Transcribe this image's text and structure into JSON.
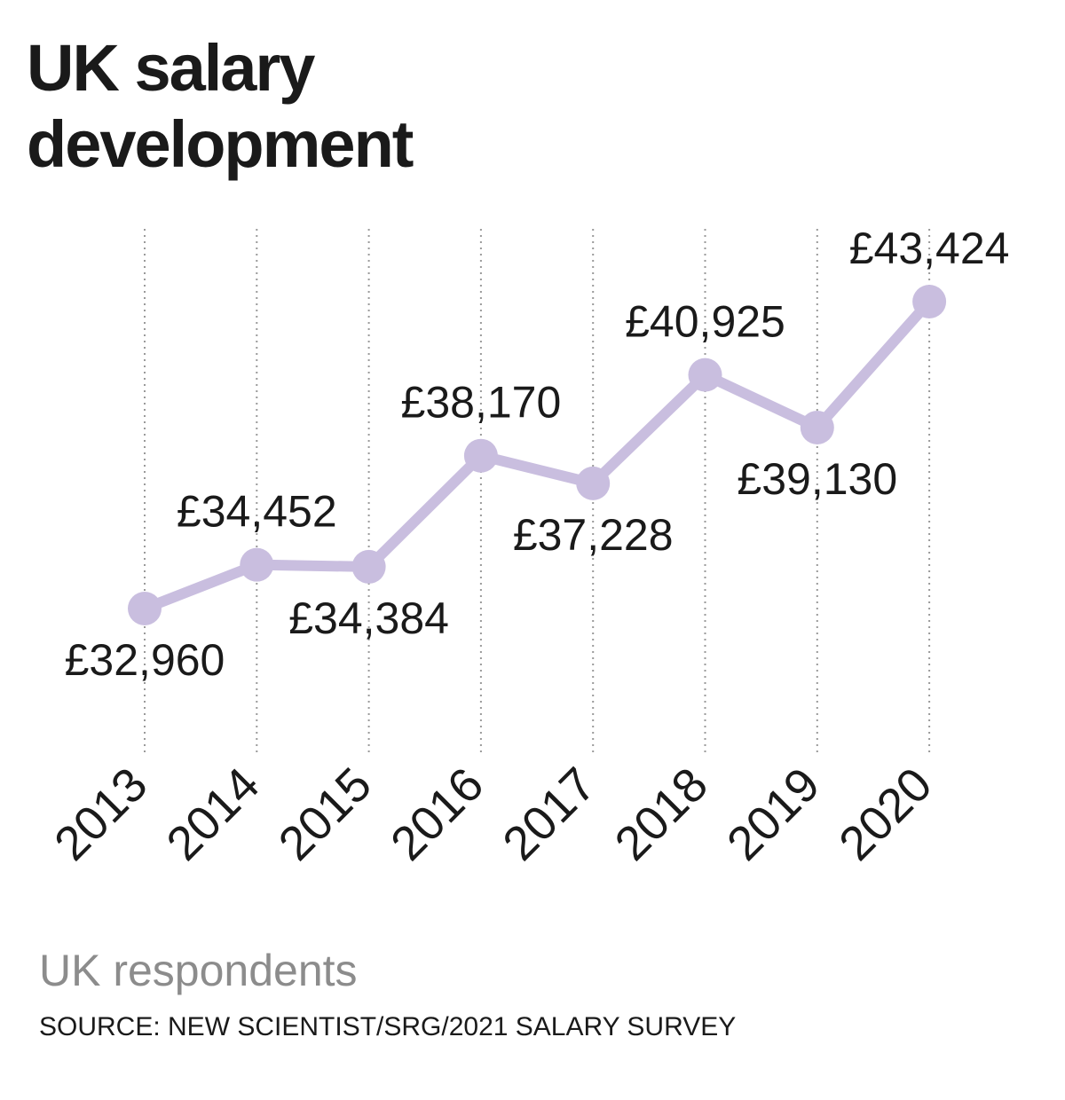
{
  "chart_data": {
    "type": "line",
    "title": "UK salary development",
    "subtitle": "UK respondents",
    "source": "SOURCE: NEW SCIENTIST/SRG/2021 SALARY SURVEY",
    "xlabel": "",
    "ylabel": "",
    "categories": [
      "2013",
      "2014",
      "2015",
      "2016",
      "2017",
      "2018",
      "2019",
      "2020"
    ],
    "series": [
      {
        "name": "UK salary",
        "values": [
          32960,
          34452,
          34384,
          38170,
          37228,
          40925,
          39130,
          43424
        ],
        "labels": [
          "£32,960",
          "£34,452",
          "£34,384",
          "£38,170",
          "£37,228",
          "£40,925",
          "£39,130",
          "£43,424"
        ],
        "label_positions": [
          "below",
          "above",
          "below",
          "above",
          "below",
          "above",
          "below",
          "above"
        ]
      }
    ],
    "ylim": [
      30000,
      45000
    ],
    "grid": "vertical dotted",
    "line_color": "#c9bedf",
    "grid_color": "#9a9a9a"
  }
}
